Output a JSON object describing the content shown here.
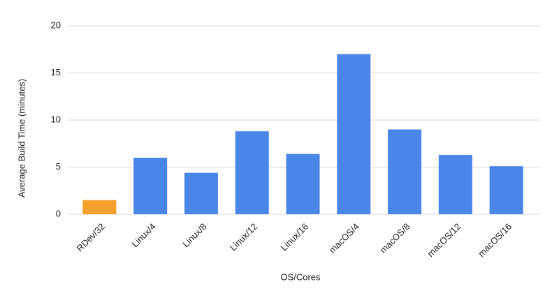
{
  "chart_data": {
    "type": "bar",
    "x_label": "OS/Cores",
    "y_label": "Average Build Time (minutes)",
    "categories": [
      "RDev/32",
      "Linux/4",
      "Linux/8",
      "Linux/12",
      "Linux/16",
      "macOS/4",
      "macOS/8",
      "macOS/12",
      "macOS/16"
    ],
    "values": [
      1.5,
      6.0,
      4.4,
      8.8,
      6.4,
      17.0,
      9.0,
      6.3,
      5.1
    ],
    "colors": [
      "#f4a12e",
      "#4a86e8",
      "#4a86e8",
      "#4a86e8",
      "#4a86e8",
      "#4a86e8",
      "#4a86e8",
      "#4a86e8",
      "#4a86e8"
    ],
    "ylim": [
      0,
      20
    ],
    "yticks": [
      0,
      5,
      10,
      15,
      20
    ],
    "grid": true
  }
}
